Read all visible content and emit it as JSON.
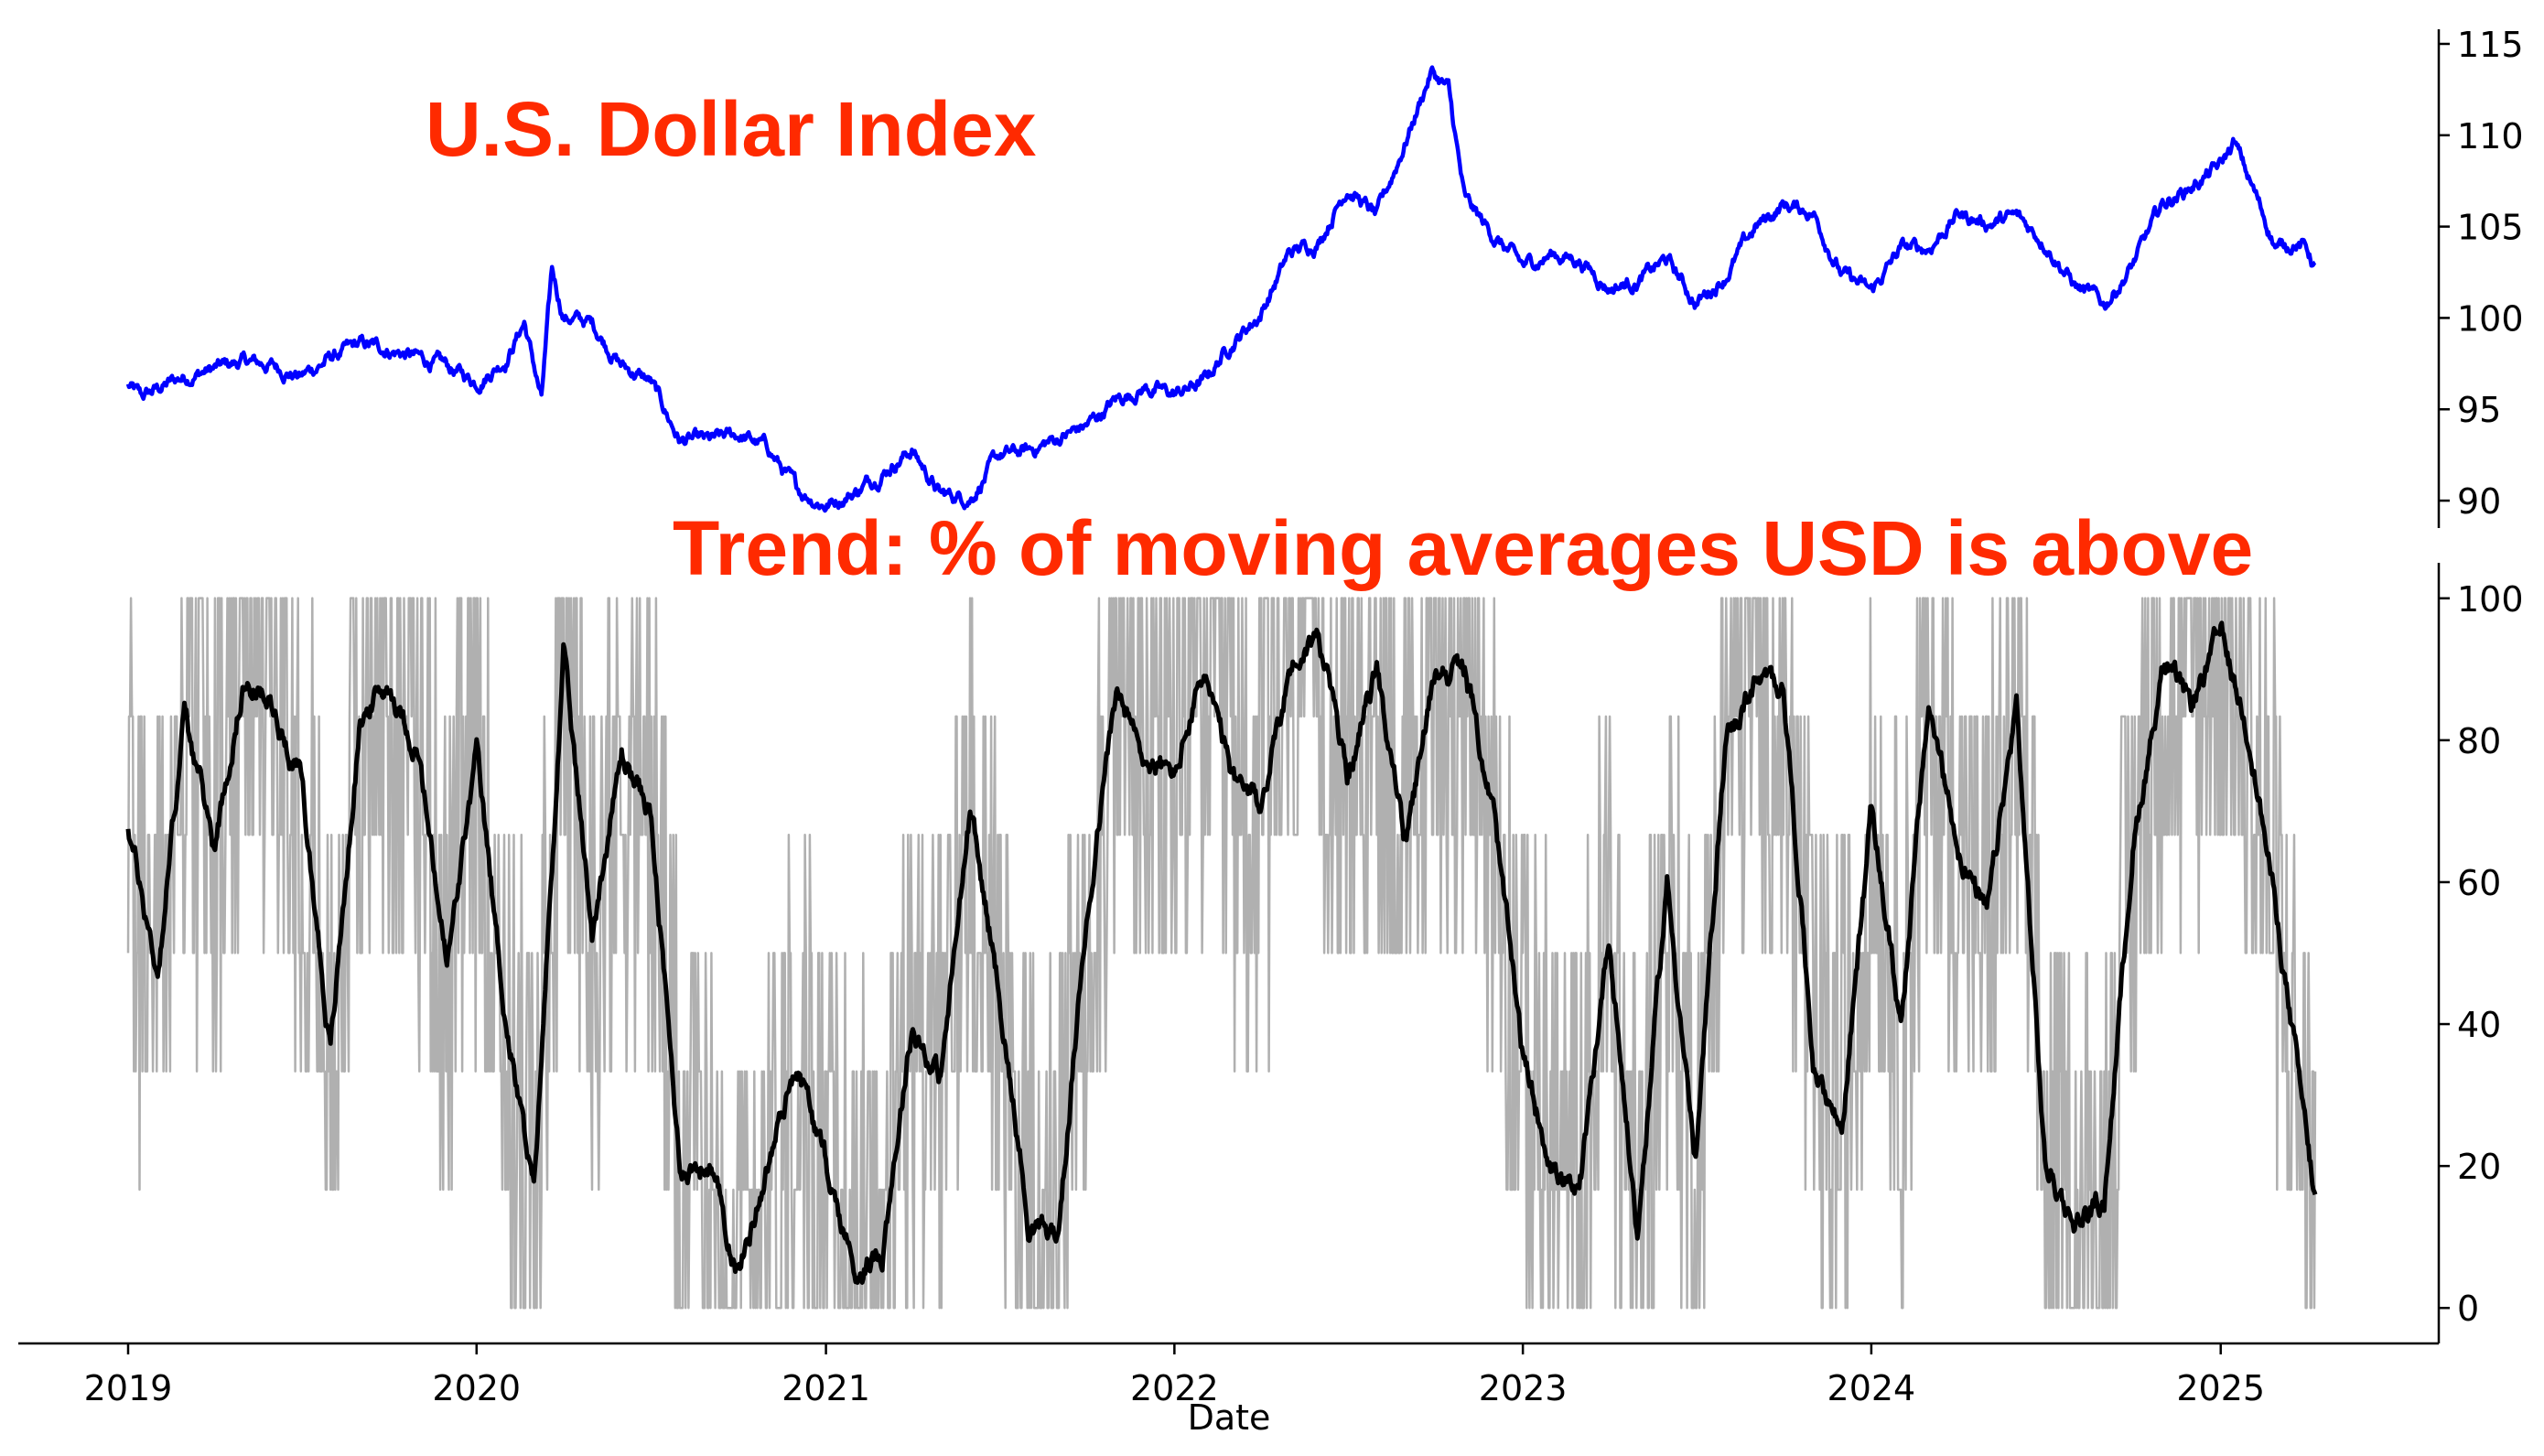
{
  "colors": {
    "usd_line": "#0000ff",
    "trend_raw": "#b0b0b0",
    "trend_smooth": "#000000",
    "title": "#ff2a00",
    "axis": "#000000"
  },
  "chart_data": [
    {
      "type": "line",
      "title": "U.S. Dollar Index",
      "xlabel": "Date",
      "ylabel": "",
      "ylim": [
        88.5,
        115.8
      ],
      "yticks": [
        90,
        95,
        100,
        105,
        110,
        115
      ],
      "y_axis_side": "right",
      "grid": false,
      "series": [
        {
          "x": [
            "2019-01-01",
            "2019-01-15",
            "2019-02-01",
            "2019-03-01",
            "2019-04-01",
            "2019-05-01",
            "2019-06-01",
            "2019-07-01",
            "2019-08-01",
            "2019-09-01",
            "2019-10-01",
            "2019-11-01",
            "2019-12-01",
            "2020-01-01",
            "2020-02-01",
            "2020-02-20",
            "2020-03-09",
            "2020-03-20",
            "2020-04-01",
            "2020-05-01",
            "2020-06-01",
            "2020-07-01",
            "2020-08-01",
            "2020-09-01",
            "2020-10-01",
            "2020-11-01",
            "2020-12-01",
            "2021-01-01",
            "2021-02-01",
            "2021-03-01",
            "2021-04-01",
            "2021-05-01",
            "2021-06-01",
            "2021-07-01",
            "2021-08-01",
            "2021-09-01",
            "2021-10-01",
            "2021-11-01",
            "2021-12-01",
            "2022-01-01",
            "2022-02-01",
            "2022-03-01",
            "2022-04-01",
            "2022-05-01",
            "2022-06-01",
            "2022-07-01",
            "2022-08-01",
            "2022-09-01",
            "2022-09-27",
            "2022-10-15",
            "2022-11-01",
            "2022-12-01",
            "2023-01-01",
            "2023-02-01",
            "2023-03-01",
            "2023-04-01",
            "2023-05-01",
            "2023-06-01",
            "2023-07-01",
            "2023-08-01",
            "2023-09-01",
            "2023-10-01",
            "2023-11-01",
            "2023-12-01",
            "2024-01-01",
            "2024-02-01",
            "2024-03-01",
            "2024-04-01",
            "2024-05-01",
            "2024-06-01",
            "2024-07-01",
            "2024-08-01",
            "2024-09-01",
            "2024-10-01",
            "2024-11-01",
            "2024-12-01",
            "2025-01-01",
            "2025-01-15",
            "2025-02-01",
            "2025-03-01",
            "2025-03-20",
            "2025-04-01",
            "2025-04-10"
          ],
          "values": [
            96.3,
            95.6,
            96.1,
            96.8,
            97.2,
            97.6,
            97.4,
            96.8,
            97.8,
            98.5,
            98.3,
            97.8,
            97.3,
            96.5,
            97.8,
            99.8,
            95.5,
            102.5,
            100.1,
            99.7,
            97.4,
            96.5,
            93.3,
            93.2,
            93.6,
            92.9,
            90.6,
            89.8,
            90.5,
            91.6,
            92.8,
            90.3,
            90.2,
            92.4,
            92.7,
            93.4,
            94.1,
            95.5,
            96.2,
            95.8,
            96.5,
            98.6,
            100.2,
            103.5,
            104.2,
            107.2,
            105.5,
            109.8,
            113.5,
            112.5,
            106.4,
            104.5,
            102.8,
            103.5,
            103.2,
            101.7,
            102.0,
            103.2,
            100.8,
            102.3,
            104.9,
            106.2,
            105.8,
            102.4,
            101.4,
            103.8,
            103.8,
            105.7,
            105.2,
            105.5,
            104.2,
            101.8,
            100.7,
            102.9,
            106.2,
            107.2,
            108.3,
            109.6,
            107.4,
            103.8,
            104.2,
            103.8,
            102.8
          ]
        }
      ]
    },
    {
      "type": "line",
      "title": "Trend: % of moving averages USD is above",
      "xlabel": "Date",
      "ylabel": "",
      "ylim": [
        -5,
        105
      ],
      "yticks": [
        0,
        20,
        40,
        60,
        80,
        100
      ],
      "xticks": [
        "2019",
        "2020",
        "2021",
        "2022",
        "2023",
        "2024",
        "2025"
      ],
      "y_axis_side": "right",
      "grid": false,
      "series": [
        {
          "x": [
            "2019-01-01",
            "2019-02-01",
            "2019-03-01",
            "2019-04-01",
            "2019-05-01",
            "2019-06-01",
            "2019-07-01",
            "2019-08-01",
            "2019-09-01",
            "2019-10-01",
            "2019-11-01",
            "2019-12-01",
            "2020-01-01",
            "2020-02-01",
            "2020-03-01",
            "2020-04-01",
            "2020-05-01",
            "2020-06-01",
            "2020-07-01",
            "2020-08-01",
            "2020-09-01",
            "2020-10-01",
            "2020-11-01",
            "2020-12-01",
            "2021-01-01",
            "2021-02-01",
            "2021-03-01",
            "2021-04-01",
            "2021-05-01",
            "2021-06-01",
            "2021-07-01",
            "2021-08-01",
            "2021-09-01",
            "2021-10-01",
            "2021-11-01",
            "2021-12-01",
            "2022-01-01",
            "2022-02-01",
            "2022-03-01",
            "2022-04-01",
            "2022-05-01",
            "2022-06-01",
            "2022-07-01",
            "2022-08-01",
            "2022-09-01",
            "2022-10-01",
            "2022-11-01",
            "2022-12-01",
            "2023-01-01",
            "2023-02-01",
            "2023-03-01",
            "2023-04-01",
            "2023-05-01",
            "2023-06-01",
            "2023-07-01",
            "2023-08-01",
            "2023-09-01",
            "2023-10-01",
            "2023-11-01",
            "2023-12-01",
            "2024-01-01",
            "2024-02-01",
            "2024-03-01",
            "2024-04-01",
            "2024-05-01",
            "2024-06-01",
            "2024-07-01",
            "2024-08-01",
            "2024-09-01",
            "2024-10-01",
            "2024-11-01",
            "2024-12-01",
            "2025-01-01",
            "2025-02-01",
            "2025-03-01",
            "2025-04-10"
          ],
          "values": [
            68,
            47,
            84,
            65,
            88,
            85,
            75,
            36,
            83,
            88,
            78,
            48,
            78,
            40,
            16,
            92,
            53,
            78,
            70,
            20,
            20,
            5,
            20,
            35,
            20,
            5,
            8,
            40,
            32,
            70,
            45,
            12,
            10,
            55,
            87,
            77,
            75,
            90,
            75,
            70,
            90,
            95,
            75,
            90,
            65,
            90,
            90,
            70,
            35,
            20,
            15,
            53,
            10,
            60,
            20,
            80,
            88,
            88,
            35,
            25,
            70,
            40,
            85,
            65,
            55,
            85,
            20,
            12,
            15,
            65,
            90,
            85,
            95,
            80,
            55,
            15
          ]
        }
      ]
    }
  ]
}
